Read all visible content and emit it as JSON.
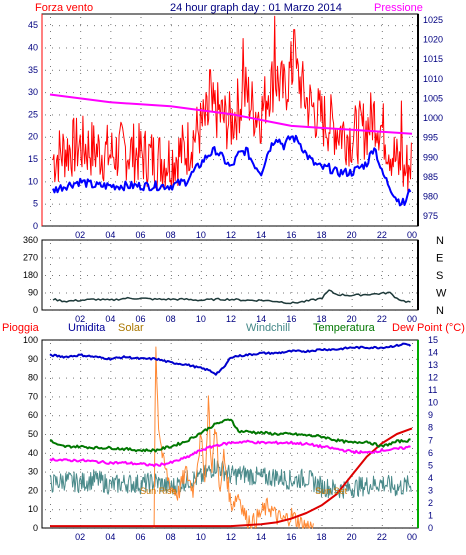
{
  "header": {
    "left_label": "Forza vento",
    "title": "24 hour graph day : 01 Marzo 2014",
    "right_label": "Pressione"
  },
  "x_ticks": [
    "02",
    "04",
    "06",
    "08",
    "10",
    "12",
    "14",
    "16",
    "18",
    "20",
    "22",
    "00"
  ],
  "chart_data": [
    {
      "type": "line",
      "name": "wind-and-pressure",
      "title": "24 hour graph day : 01 Marzo 2014",
      "xlim": [
        0,
        24
      ],
      "y_left_label": "Forza vento",
      "y_left_ticks": [
        0,
        5,
        10,
        15,
        20,
        25,
        30,
        35,
        40,
        45
      ],
      "y_left_lim": [
        0,
        47.5
      ],
      "y_right_label": "Pressione",
      "y_right_ticks": [
        975,
        980,
        985,
        990,
        995,
        1000,
        1005,
        1010,
        1015,
        1020,
        1025
      ],
      "y_right_lim": [
        972.5,
        1026.5
      ],
      "series": [
        {
          "name": "Forza vento",
          "axis": "left",
          "color": "#ff0000",
          "x": [
            0.2,
            1,
            2,
            3,
            4,
            5,
            6,
            7,
            8,
            9,
            9.5,
            10,
            10.5,
            11,
            11.5,
            12,
            12.5,
            13,
            13.5,
            14,
            14.5,
            15,
            15.5,
            16,
            16.5,
            17,
            17.5,
            18,
            18.5,
            19,
            20,
            21,
            21.5,
            22,
            22.5,
            23,
            23.5,
            24
          ],
          "y": [
            15,
            17,
            18,
            17,
            16,
            17,
            16,
            15,
            15,
            17,
            20,
            22,
            24,
            26,
            24,
            23,
            27,
            30,
            26,
            25,
            31,
            33,
            30,
            35,
            33,
            28,
            26,
            24,
            23,
            22,
            20,
            22,
            25,
            22,
            18,
            14,
            12,
            15
          ],
          "peaks": [
            [
              12.8,
              42
            ],
            [
              14.9,
              47
            ],
            [
              16.2,
              44
            ],
            [
              10.6,
              35
            ],
            [
              23.3,
              28
            ]
          ]
        },
        {
          "name": "media vento",
          "axis": "left",
          "color": "#0000ff",
          "x": [
            0.2,
            1,
            2,
            3,
            4,
            5,
            6,
            7,
            8,
            9,
            9.5,
            10,
            10.5,
            11,
            11.5,
            12,
            12.5,
            13,
            13.5,
            14,
            14.5,
            15,
            15.5,
            16,
            16.5,
            17,
            17.5,
            18,
            18.5,
            19,
            20,
            21,
            21.5,
            22,
            22.5,
            23,
            23.5,
            24
          ],
          "y": [
            8,
            9,
            10,
            9,
            9,
            9,
            9,
            9,
            9,
            10,
            12,
            14,
            16,
            17,
            15,
            13,
            16,
            17,
            14,
            12,
            17,
            20,
            18,
            20,
            19,
            16,
            14,
            13,
            13,
            12,
            12,
            14,
            18,
            12,
            9,
            6,
            5,
            9
          ]
        },
        {
          "name": "Pressione",
          "axis": "right",
          "color": "#ff00ff",
          "x": [
            0,
            2,
            4,
            6,
            8,
            10,
            12,
            14,
            16,
            18,
            20,
            22,
            24
          ],
          "y": [
            1006,
            1005,
            1004,
            1003.5,
            1003,
            1002,
            1001,
            999.5,
            998,
            997.5,
            997,
            996.5,
            996
          ]
        }
      ]
    },
    {
      "type": "line",
      "name": "wind-direction",
      "xlim": [
        0,
        24
      ],
      "y_left_ticks": [
        0,
        90,
        180,
        270,
        360
      ],
      "y_left_lim": [
        0,
        360
      ],
      "y_right_ticks": [
        "N",
        "W",
        "S",
        "E",
        "N"
      ],
      "series": [
        {
          "name": "direzione vento",
          "axis": "left",
          "color": "#1e3a3a",
          "x": [
            0.2,
            1,
            2,
            3,
            4,
            5,
            6,
            7,
            8,
            9,
            10,
            11,
            12,
            13,
            14,
            15,
            16,
            17,
            18,
            18.5,
            19,
            20,
            21,
            22,
            22.5,
            23,
            23.5,
            24
          ],
          "y": [
            55,
            45,
            50,
            55,
            50,
            60,
            60,
            55,
            55,
            55,
            50,
            55,
            55,
            50,
            50,
            45,
            35,
            45,
            60,
            100,
            80,
            75,
            80,
            85,
            90,
            60,
            45,
            40
          ]
        }
      ]
    },
    {
      "type": "line",
      "name": "rain-humidity-solar-temperature",
      "xlim": [
        0,
        24
      ],
      "y_left_ticks": [
        0,
        10,
        20,
        30,
        40,
        50,
        60,
        70,
        80,
        90,
        100
      ],
      "y_left_lim": [
        0,
        100
      ],
      "y_right_ticks": [
        0,
        1,
        2,
        3,
        4,
        5,
        6,
        7,
        8,
        9,
        10,
        11,
        12,
        13,
        14,
        15
      ],
      "y_right_lim": [
        0,
        15
      ],
      "y_right_unit": "(°C)",
      "legend": [
        "Pioggia",
        "Umidita",
        "Solar",
        "Windchill",
        "Temperatura",
        "Dew Point"
      ],
      "series": [
        {
          "name": "Pioggia",
          "axis": "left",
          "color": "#dd0000",
          "x": [
            0,
            6,
            12,
            14,
            15,
            16,
            17,
            18,
            19,
            20,
            21,
            22,
            23,
            24
          ],
          "y": [
            1,
            1,
            1,
            2,
            3,
            5,
            8,
            12,
            18,
            28,
            38,
            45,
            50,
            53
          ]
        },
        {
          "name": "Umidita",
          "axis": "left",
          "color": "#0000cc",
          "x": [
            0,
            1,
            2,
            3,
            4,
            5,
            6,
            7,
            8,
            9,
            10,
            10.5,
            11,
            11.5,
            12,
            13,
            14,
            15,
            16,
            17,
            18,
            19,
            20,
            21,
            22,
            23,
            23.5,
            24
          ],
          "y": [
            92,
            91,
            92,
            91,
            90,
            91,
            90,
            90,
            88,
            87,
            85,
            84,
            82,
            85,
            91,
            92,
            93,
            93,
            94,
            94,
            95,
            95,
            96,
            96,
            96,
            97,
            98,
            97
          ]
        },
        {
          "name": "Solar",
          "axis": "left",
          "color": "#ff8833",
          "x": [
            6.9,
            7.0,
            7.2,
            7.5,
            8,
            8.5,
            9,
            9.5,
            10,
            10.3,
            10.5,
            10.7,
            11,
            11.3,
            11.5,
            12,
            12.5,
            13,
            13.5,
            14,
            14.5,
            15,
            15.5,
            16,
            16.5,
            17,
            17.5
          ],
          "y": [
            0,
            100,
            55,
            35,
            22,
            18,
            30,
            20,
            48,
            25,
            70,
            30,
            55,
            15,
            40,
            12,
            18,
            5,
            3,
            8,
            12,
            6,
            4,
            7,
            3,
            1,
            0
          ]
        },
        {
          "name": "Windchill",
          "axis": "right",
          "color": "#4a8a8a",
          "x": [
            0,
            1,
            2,
            3,
            4,
            5,
            6,
            7,
            8,
            9,
            10,
            11,
            12,
            13,
            14,
            15,
            16,
            17,
            18,
            19,
            20,
            21,
            22,
            23,
            24
          ],
          "y": [
            3.5,
            3.8,
            3.6,
            3.9,
            3.4,
            3.6,
            3.5,
            3.7,
            3.2,
            3.8,
            4.0,
            5.0,
            4.2,
            4.3,
            4.0,
            4.1,
            3.8,
            4.0,
            3.3,
            3.1,
            3.2,
            3.4,
            3.6,
            3.2,
            3.5
          ]
        },
        {
          "name": "Temperatura",
          "axis": "right",
          "color": "#007700",
          "x": [
            0,
            0.5,
            1,
            2,
            3,
            4,
            5,
            6,
            7,
            8,
            9,
            10,
            11,
            12,
            12.5,
            13,
            14,
            15,
            16,
            17,
            18,
            19,
            20,
            21,
            22,
            23,
            24
          ],
          "y": [
            7.0,
            6.6,
            6.5,
            6.5,
            6.4,
            6.4,
            6.3,
            6.2,
            6.2,
            6.5,
            6.9,
            7.6,
            8.3,
            8.7,
            7.7,
            7.7,
            7.6,
            7.5,
            7.5,
            7.4,
            7.3,
            7.0,
            6.8,
            6.9,
            6.5,
            6.9,
            7.0
          ]
        },
        {
          "name": "Dew Point",
          "axis": "right",
          "color": "#ff00ff",
          "x": [
            0,
            1,
            2,
            3,
            4,
            5,
            6,
            7,
            8,
            9,
            10,
            11,
            12,
            13,
            14,
            15,
            16,
            17,
            18,
            19,
            20,
            21,
            22,
            23,
            24
          ],
          "y": [
            5.5,
            5.4,
            5.4,
            5.3,
            5.2,
            5.2,
            5.1,
            5.0,
            5.2,
            5.6,
            6.2,
            6.6,
            6.8,
            6.9,
            6.8,
            6.8,
            6.8,
            6.7,
            6.5,
            6.3,
            6.1,
            6.0,
            6.2,
            6.3,
            6.5
          ]
        }
      ],
      "annotations": [
        {
          "text": "Sun Rise",
          "x": 7.3,
          "y": 18
        },
        {
          "text": "Sun Set",
          "x": 18.9,
          "y": 18
        }
      ]
    }
  ],
  "legend_colors": {
    "Pioggia": "#ff0000",
    "Umidita": "#000099",
    "Solar": "#aa7700",
    "Windchill": "#448888",
    "Temperatura": "#007700",
    "Dew Point": "#ff0000"
  },
  "colors": {
    "axis_left_top": "#ff0000",
    "axis_right_top": "#000000",
    "axis_right_bottom": "#00aa00",
    "grid": "#888888"
  }
}
